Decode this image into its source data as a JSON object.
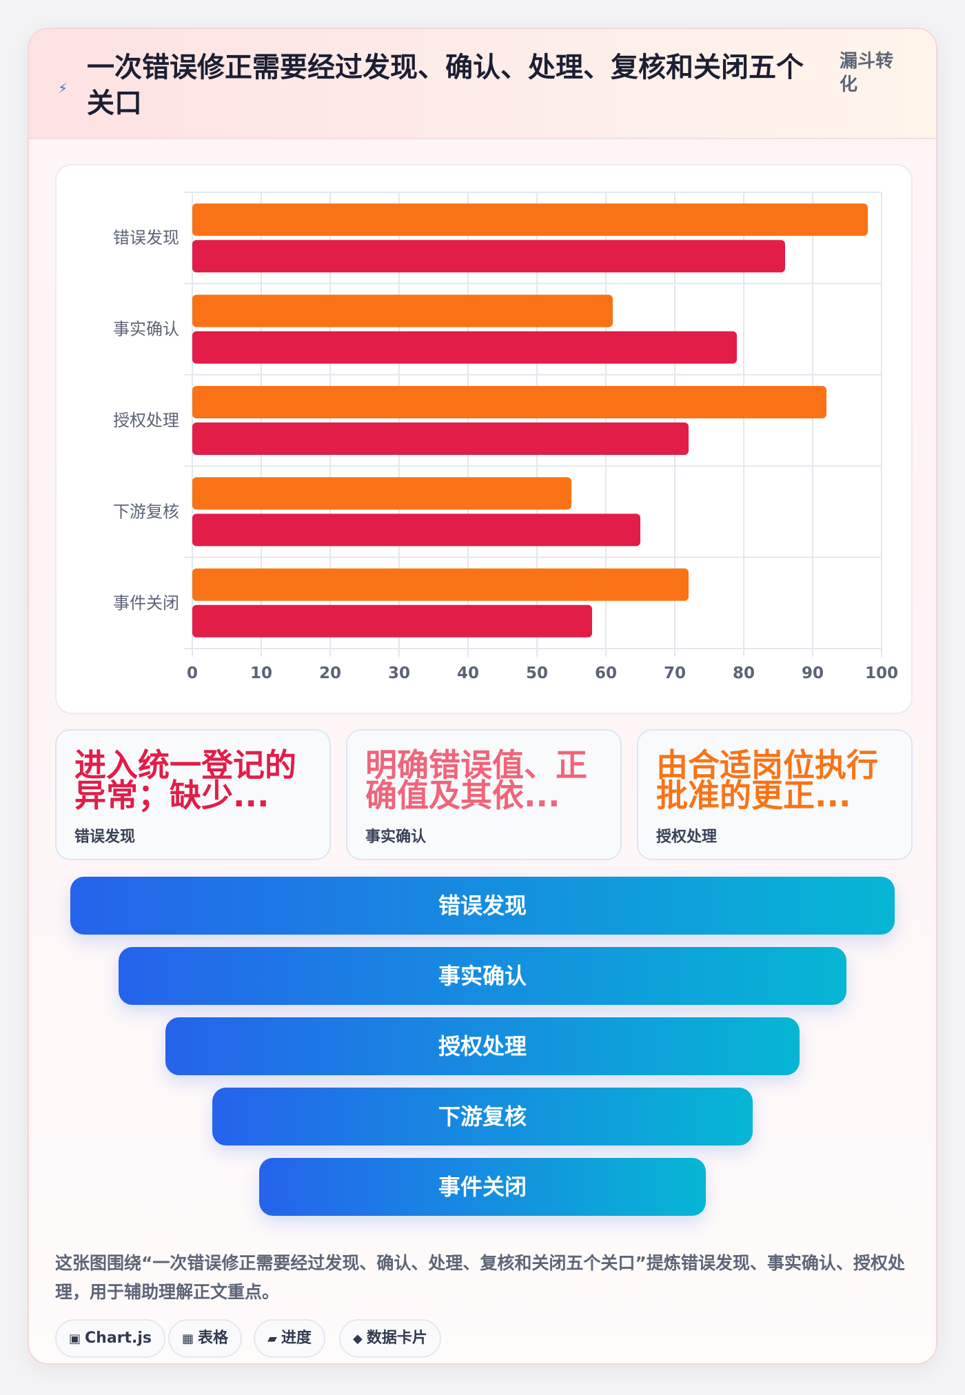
{
  "header": {
    "title": "一次错误修正需要经过发现、确认、处理、复核和关闭五个关口",
    "tag": "漏斗转化",
    "icon": "bolt-icon"
  },
  "chart_data": {
    "type": "bar",
    "orientation": "horizontal",
    "categories": [
      "错误发现",
      "事实确认",
      "授权处理",
      "下游复核",
      "事件关闭"
    ],
    "series": [
      {
        "values": [
          98,
          61,
          92,
          55,
          72
        ],
        "color": "#f97316"
      },
      {
        "values": [
          86,
          79,
          72,
          65,
          58
        ],
        "color": "#e11d48"
      }
    ],
    "xlim": [
      0,
      100
    ],
    "xticks": [
      0,
      10,
      20,
      30,
      40,
      50,
      60,
      70,
      80,
      90,
      100
    ],
    "grid": true,
    "legend": "none"
  },
  "stats": [
    {
      "headline": "进入统一登记的异常；缺少...",
      "label": "错误发现",
      "color": "#e11d48"
    },
    {
      "headline": "明确错误值、正确值及其依...",
      "label": "事实确认",
      "color": "#f0647a"
    },
    {
      "headline": "由合适岗位执行批准的更正...",
      "label": "授权处理",
      "color": "#f97316"
    }
  ],
  "funnel": {
    "stages": [
      "错误发现",
      "事实确认",
      "授权处理",
      "下游复核",
      "事件关闭"
    ],
    "color_start": "#2563eb",
    "color_end": "#06b6d4"
  },
  "description": "这张图围绕“一次错误修正需要经过发现、确认、处理、复核和关闭五个关口”提炼错误发现、事实确认、授权处理，用于辅助理解正文重点。",
  "chips": [
    {
      "icon": "▣",
      "label": "Chart.js"
    },
    {
      "icon": "▦",
      "label": "表格"
    },
    {
      "icon": "▰",
      "label": "进度"
    },
    {
      "icon": "◆",
      "label": "数据卡片"
    }
  ]
}
